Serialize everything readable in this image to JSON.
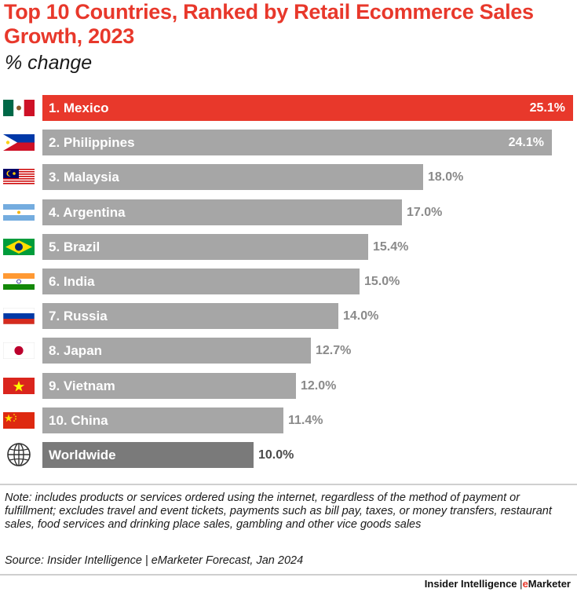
{
  "title": "Top 10 Countries, Ranked by Retail  Ecommerce Sales Growth, 2023",
  "subtitle": "% change",
  "note": "Note: includes products or services ordered using the internet, regardless of the method of payment or fulfillment; excludes travel and event tickets, payments such as bill pay, taxes, or money transfers, restaurant  sales, food services and drinking place sales, gambling and other vice goods sales",
  "source": "Source: Insider Intelligence  | eMarketer Forecast, Jan 2024",
  "footer": {
    "left": "Insider Intelligence",
    "sep": "|",
    "right_e": "e",
    "right_rest": "Marketer"
  },
  "colors": {
    "highlight": "#e8382b",
    "bar": "#a6a6a6",
    "worldwide": "#7a7a7a",
    "title": "#e8382b"
  },
  "chart_data": {
    "type": "bar",
    "orientation": "horizontal",
    "title": "Top 10 Countries, Ranked by Retail  Ecommerce Sales Growth, 2023",
    "subtitle": "% change",
    "unit": "%",
    "xlim": [
      0,
      25.1
    ],
    "categories": [
      "1. Mexico",
      "2. Philippines",
      "3. Malaysia",
      "4. Argentina",
      "5. Brazil",
      "6. India",
      "7. Russia",
      "8. Japan",
      "9. Vietnam",
      "10. China",
      "Worldwide"
    ],
    "values": [
      25.1,
      24.1,
      18.0,
      17.0,
      15.4,
      15.0,
      14.0,
      12.7,
      12.0,
      11.4,
      10.0
    ],
    "value_labels": [
      "25.1%",
      "24.1%",
      "18.0%",
      "17.0%",
      "15.4%",
      "15.0%",
      "14.0%",
      "12.7%",
      "12.0%",
      "11.4%",
      "10.0%"
    ],
    "flag_icons": [
      "mexico-flag-icon",
      "philippines-flag-icon",
      "malaysia-flag-icon",
      "argentina-flag-icon",
      "brazil-flag-icon",
      "india-flag-icon",
      "russia-flag-icon",
      "japan-flag-icon",
      "vietnam-flag-icon",
      "china-flag-icon",
      "globe-icon"
    ],
    "highlight_index": 0,
    "grid": false,
    "legend": "none"
  }
}
